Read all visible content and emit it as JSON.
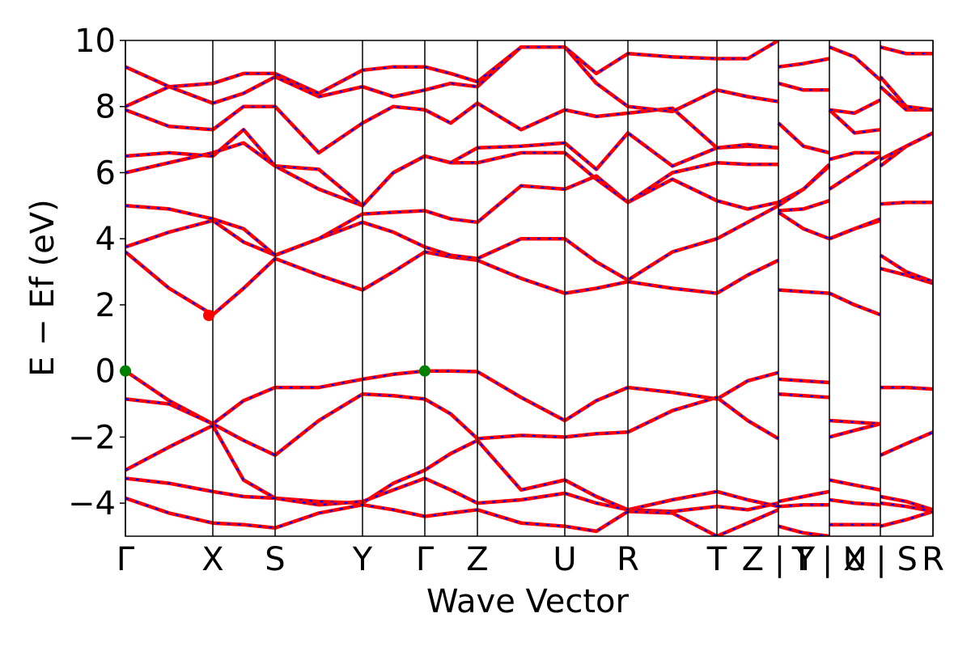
{
  "chart_data": {
    "type": "band-structure",
    "xlabel": "Wave Vector",
    "ylabel": "E − Ef (eV)",
    "xlim": [
      0,
      9.98
    ],
    "ylim": [
      -5,
      10
    ],
    "yticks": [
      {
        "value": -4,
        "label": "−4"
      },
      {
        "value": -2,
        "label": "−2"
      },
      0,
      2,
      4,
      6,
      8,
      10
    ],
    "xticks": [
      {
        "value": 0,
        "label": "Γ"
      },
      {
        "value": 1.08,
        "label": "X"
      },
      {
        "value": 1.85,
        "label": "S"
      },
      {
        "value": 2.93,
        "label": "Y"
      },
      {
        "value": 3.7,
        "label": "Γ"
      },
      {
        "value": 4.35,
        "label": "Z"
      },
      {
        "value": 5.43,
        "label": "U"
      },
      {
        "value": 6.21,
        "label": "R"
      },
      {
        "value": 7.31,
        "label": "T"
      },
      {
        "value": 8.07,
        "label": "Z | Y"
      },
      {
        "value": 8.7,
        "label": "T | U"
      },
      {
        "value": 9.33,
        "label": "X | S"
      },
      {
        "value": 9.98,
        "label": "R"
      }
    ],
    "line_colors": [
      "#ff0000",
      "#0000ff"
    ],
    "x": [
      0,
      0.54,
      1.08,
      1.46,
      1.85,
      2.39,
      2.93,
      3.31,
      3.7,
      4.02,
      4.35,
      4.89,
      5.43,
      5.82,
      6.21,
      6.76,
      7.31,
      7.69,
      8.07,
      8.07,
      8.07,
      8.38,
      8.7,
      8.7,
      8.7,
      9.01,
      9.33,
      9.33,
      9.33,
      9.65,
      9.98
    ],
    "series": [
      {
        "values": [
          0,
          -0.9,
          -1.6,
          -0.9,
          -0.5,
          -0.5,
          -0.25,
          -0.1,
          0,
          0,
          -0.02,
          -0.8,
          -1.5,
          -0.9,
          -0.5,
          -0.65,
          -0.85,
          -0.3,
          -0.05,
          null,
          -0.25,
          -0.3,
          -0.35,
          null,
          -1.5,
          -1.55,
          -1.6,
          null,
          -0.5,
          -0.5,
          -0.55
        ]
      },
      {
        "values": [
          -0.85,
          -1.0,
          -1.6,
          -2.1,
          -2.55,
          -1.5,
          -0.7,
          -0.75,
          -0.85,
          -1.3,
          -2.05,
          -1.95,
          -2.0,
          -1.9,
          -1.85,
          -1.2,
          -0.8,
          -1.5,
          -2.05,
          null,
          -0.7,
          -0.75,
          -0.8,
          null,
          -2.0,
          -1.8,
          -1.6,
          null,
          -2.55,
          -2.2,
          -1.85
        ]
      },
      {
        "values": [
          -3.0,
          -2.3,
          -1.65,
          -3.3,
          -3.85,
          -3.95,
          -4.0,
          -3.4,
          -3.0,
          -2.5,
          -2.1,
          -3.6,
          -3.3,
          -3.8,
          -4.2,
          -3.9,
          -3.65,
          -3.9,
          -4.1,
          null,
          -3.95,
          -3.8,
          -3.65,
          null,
          -3.3,
          -3.45,
          -3.6,
          null,
          -3.8,
          -3.95,
          -4.2
        ]
      },
      {
        "values": [
          -3.25,
          -3.4,
          -3.65,
          -3.8,
          -3.85,
          -4.05,
          -3.95,
          -3.6,
          -3.25,
          -3.6,
          -4.0,
          -3.9,
          -3.7,
          -4.0,
          -4.2,
          -4.25,
          -4.1,
          -4.2,
          -4.0,
          null,
          -4.1,
          -4.05,
          -4.05,
          null,
          -3.9,
          -4.0,
          -4.05,
          null,
          -4.0,
          -4.1,
          -4.25
        ]
      },
      {
        "values": [
          -3.85,
          -4.3,
          -4.6,
          -4.65,
          -4.75,
          -4.3,
          -4.05,
          -4.2,
          -4.4,
          -4.3,
          -4.2,
          -4.6,
          -4.7,
          -4.85,
          -4.25,
          -4.3,
          -5.0,
          -4.6,
          -4.2,
          null,
          -4.7,
          -4.9,
          -5.0,
          null,
          -4.65,
          -4.65,
          -4.65,
          null,
          -4.7,
          -4.5,
          -4.25
        ]
      },
      {
        "values": [
          3.6,
          2.5,
          1.7,
          2.5,
          3.4,
          2.9,
          2.45,
          3.0,
          3.6,
          3.45,
          3.35,
          2.8,
          2.35,
          2.5,
          2.7,
          2.5,
          2.35,
          2.9,
          3.35,
          null,
          2.45,
          2.4,
          2.35,
          null,
          2.35,
          2.0,
          1.7,
          null,
          3.1,
          2.9,
          2.65
        ]
      },
      {
        "values": [
          3.75,
          4.2,
          4.55,
          3.9,
          3.5,
          4.0,
          4.5,
          4.2,
          3.75,
          3.5,
          3.4,
          4.0,
          4.0,
          3.3,
          2.75,
          3.6,
          4.0,
          4.5,
          5.0,
          null,
          4.8,
          4.3,
          4.0,
          null,
          4.0,
          4.3,
          4.55,
          null,
          3.5,
          3.0,
          2.7
        ]
      },
      {
        "values": [
          5.0,
          4.9,
          4.6,
          4.3,
          3.5,
          4.0,
          4.75,
          4.8,
          4.85,
          4.6,
          4.5,
          5.6,
          5.5,
          5.9,
          5.1,
          5.8,
          5.15,
          4.9,
          5.1,
          null,
          4.85,
          4.9,
          5.15,
          null,
          4.0,
          4.3,
          4.6,
          null,
          5.05,
          5.1,
          5.1
        ]
      },
      {
        "values": [
          6.0,
          6.3,
          6.6,
          6.9,
          6.2,
          6.1,
          5.0,
          6.0,
          6.5,
          6.3,
          6.3,
          6.6,
          6.6,
          5.8,
          5.1,
          6.0,
          6.3,
          6.25,
          6.25,
          null,
          5.1,
          5.5,
          6.25,
          null,
          5.5,
          6.0,
          6.5,
          null,
          6.2,
          6.8,
          7.2
        ]
      },
      {
        "values": [
          6.5,
          6.6,
          6.5,
          7.3,
          6.2,
          5.5,
          5.0,
          6.0,
          6.5,
          6.3,
          6.75,
          6.8,
          6.9,
          6.1,
          7.2,
          6.2,
          6.75,
          6.8,
          6.75,
          null,
          5.0,
          5.5,
          6.2,
          null,
          6.4,
          6.6,
          6.6,
          null,
          6.4,
          6.8,
          7.2
        ]
      },
      {
        "values": [
          7.9,
          7.4,
          7.3,
          8.0,
          8.0,
          6.6,
          7.5,
          8.0,
          7.9,
          7.5,
          8.1,
          7.3,
          7.9,
          7.7,
          7.8,
          7.95,
          6.75,
          6.85,
          6.75,
          null,
          7.5,
          6.8,
          6.6,
          null,
          7.9,
          7.2,
          7.3,
          null,
          8.6,
          7.9,
          7.9
        ]
      },
      {
        "values": [
          8.0,
          8.6,
          8.1,
          8.4,
          8.9,
          8.3,
          8.6,
          8.3,
          8.5,
          8.7,
          8.6,
          9.8,
          9.8,
          8.7,
          8.0,
          7.85,
          8.5,
          8.3,
          8.15,
          null,
          8.7,
          8.5,
          8.5,
          null,
          7.9,
          7.8,
          8.2,
          null,
          8.9,
          8.0,
          7.9
        ]
      },
      {
        "values": [
          9.2,
          8.6,
          8.7,
          9.0,
          9.0,
          8.4,
          9.1,
          9.2,
          9.2,
          9.0,
          8.75,
          9.8,
          9.8,
          9.0,
          9.6,
          9.5,
          9.45,
          9.45,
          10.0,
          null,
          9.2,
          9.3,
          9.45,
          null,
          9.8,
          9.5,
          8.8,
          null,
          9.8,
          9.6,
          9.6
        ]
      }
    ],
    "markers": [
      {
        "x": 1.03,
        "y": 1.68,
        "color": "#ff0000"
      },
      {
        "x": 0,
        "y": 0,
        "color": "#008000"
      },
      {
        "x": 3.7,
        "y": 0,
        "color": "#008000"
      }
    ]
  }
}
